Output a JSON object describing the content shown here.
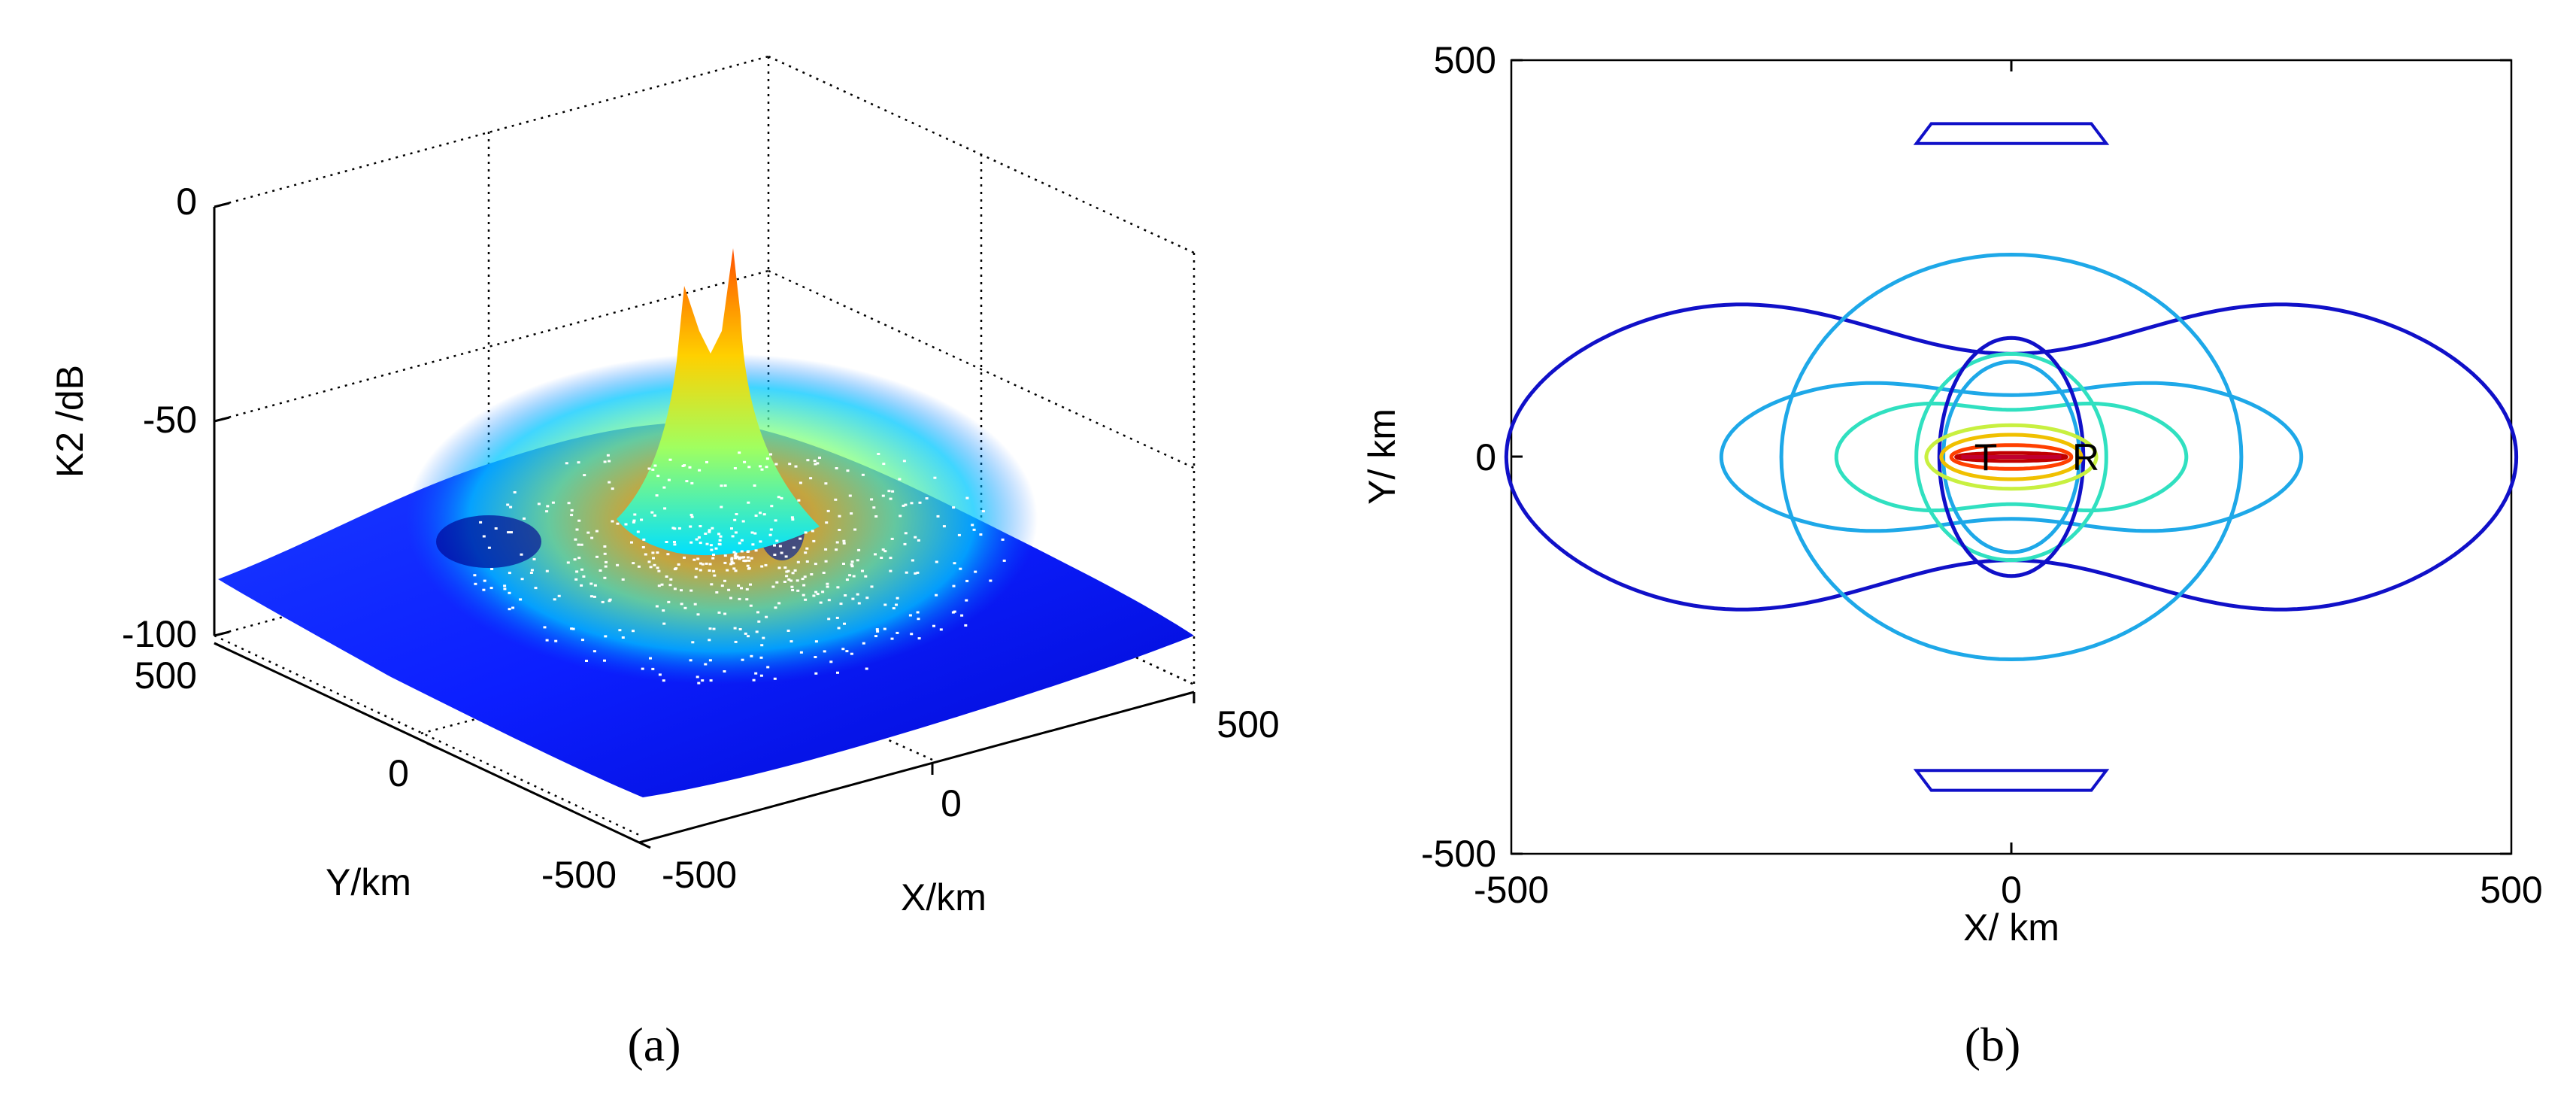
{
  "chart_data": [
    {
      "panel_label": "(a)",
      "type": "surface",
      "zlabel": "K2 /dB",
      "xlabel": "X/km",
      "ylabel": "Y/km",
      "xlim": [
        -500,
        500
      ],
      "ylim": [
        -500,
        500
      ],
      "zlim": [
        -100,
        0
      ],
      "xticks": [
        "-500",
        "0",
        "500"
      ],
      "yticks": [
        "-500",
        "0",
        "500"
      ],
      "zticks": [
        "-100",
        "-50",
        "0"
      ],
      "grid": true,
      "colormap": [
        "#00008f",
        "#0000ff",
        "#0080ff",
        "#00ffff",
        "#80ff80",
        "#ffff00",
        "#ff8000",
        "#ff0000",
        "#800000"
      ],
      "features": {
        "peak_value_db": -20,
        "peak_x_km": [
          -50,
          50
        ],
        "background_db": [
          -95,
          -85
        ]
      }
    },
    {
      "panel_label": "(b)",
      "type": "contour",
      "xlabel": "X/ km",
      "ylabel": "Y/ km",
      "xlim": [
        -500,
        500
      ],
      "ylim": [
        -500,
        500
      ],
      "xticks": [
        "-500",
        "0",
        "500"
      ],
      "yticks": [
        "-500",
        "0",
        "500"
      ],
      "annotations": [
        {
          "text": "T",
          "x": -50,
          "y": 0
        },
        {
          "text": "R",
          "x": 50,
          "y": 0
        }
      ],
      "levels": [
        {
          "color": "#1010c8"
        },
        {
          "color": "#1ea8e8"
        },
        {
          "color": "#30e0c0"
        },
        {
          "color": "#c8f040"
        },
        {
          "color": "#f0c000"
        },
        {
          "color": "#ff4000"
        },
        {
          "color": "#c00000"
        }
      ]
    }
  ]
}
